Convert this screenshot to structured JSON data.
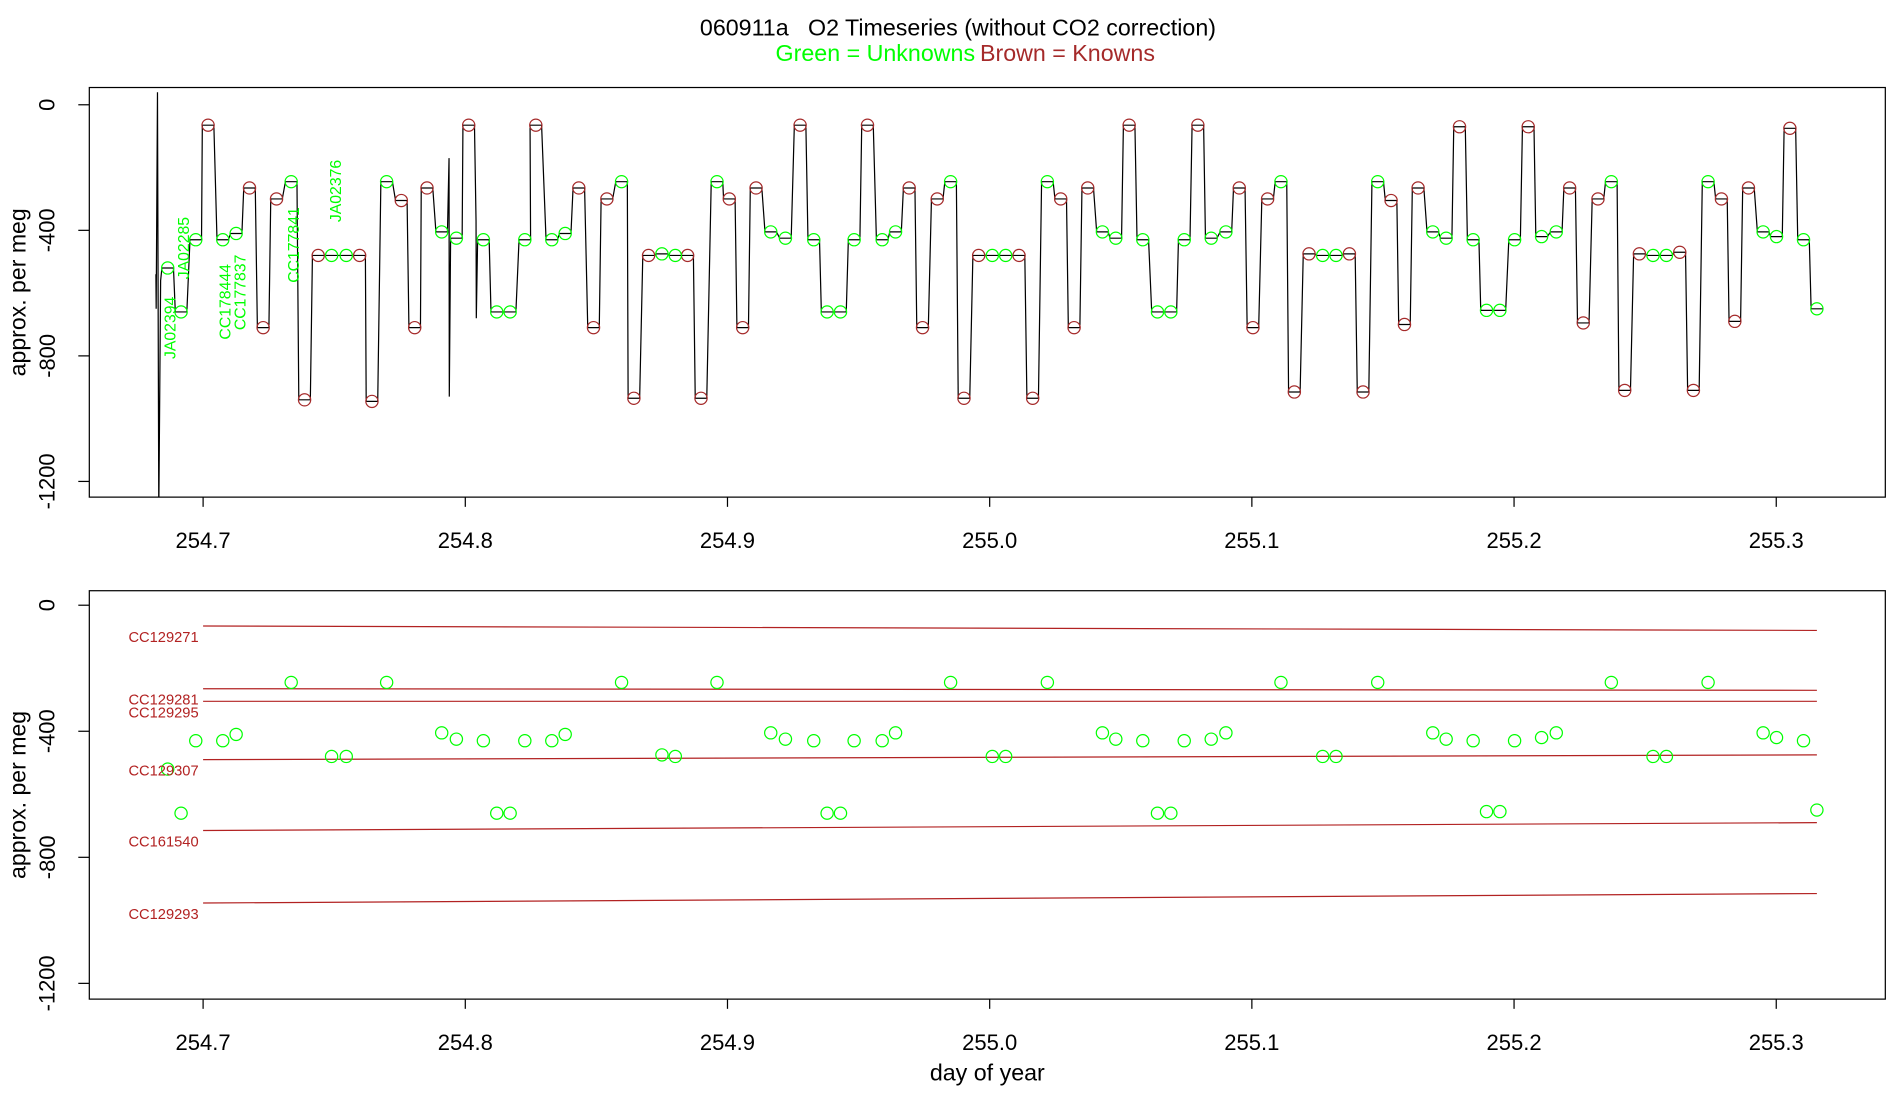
{
  "chart_data": [
    {
      "type": "line",
      "title": "060911a   O2 Timeseries (without CO2 correction)",
      "legend": [
        {
          "name": "Green = Unknowns",
          "color": "#00ff00"
        },
        {
          "name": "Brown = Knowns",
          "color": "#a52a2a"
        }
      ],
      "ylabel": "approx. per meg",
      "color": "#000000",
      "xlim": [
        254.6566,
        255.3416
      ],
      "ylim": [
        -1250,
        55
      ],
      "xticks": [
        254.7,
        254.8,
        254.9,
        {
          "value": 255,
          "label": "255.0"
        },
        255.1,
        255.2,
        255.3
      ],
      "yticks": [
        0,
        -400,
        -800,
        -1200
      ],
      "x": [
        254.682,
        254.6821,
        254.6826,
        254.6831,
        254.6838,
        254.6843,
        254.6887,
        254.6894,
        254.6938,
        254.695,
        254.6994,
        254.6997,
        254.7041,
        254.7053,
        254.7097,
        254.7104,
        254.7148,
        254.7155,
        254.7199,
        254.7207,
        254.7251,
        254.7258,
        254.7302,
        254.7314,
        254.7358,
        254.7365,
        254.7409,
        254.7417,
        254.7461,
        254.7468,
        254.7512,
        254.7524,
        254.7568,
        254.7575,
        254.7619,
        254.7622,
        254.7666,
        254.7678,
        254.7722,
        254.7734,
        254.7778,
        254.7785,
        254.7829,
        254.7832,
        254.7876,
        254.7888,
        254.7932,
        254.7938,
        254.7939,
        254.7944,
        254.7988,
        254.7991,
        254.8035,
        254.8041,
        254.8042,
        254.8047,
        254.8091,
        254.8098,
        254.8142,
        254.8149,
        254.8193,
        254.8205,
        254.8249,
        254.8247,
        254.8291,
        254.8308,
        254.8352,
        254.8359,
        254.8403,
        254.8411,
        254.8455,
        254.8467,
        254.8511,
        254.8518,
        254.8562,
        254.8574,
        254.8618,
        254.8621,
        254.8665,
        254.8677,
        254.8721,
        254.8728,
        254.8772,
        254.8779,
        254.8823,
        254.8826,
        254.887,
        254.8877,
        254.8921,
        254.8938,
        254.8982,
        254.8985,
        254.9029,
        254.9036,
        254.908,
        254.9087,
        254.9131,
        254.9143,
        254.9187,
        254.9199,
        254.9243,
        254.9255,
        254.9299,
        254.9307,
        254.9351,
        254.9358,
        254.9402,
        254.9409,
        254.9453,
        254.9461,
        254.9505,
        254.9512,
        254.9556,
        254.9568,
        254.9612,
        254.9619,
        254.9663,
        254.9671,
        254.9715,
        254.9722,
        254.9766,
        254.9778,
        254.9822,
        254.9829,
        254.9873,
        254.988,
        254.9924,
        254.9936,
        254.998,
        254.9988,
        255.0032,
        255.0039,
        255.0083,
        255.009,
        255.0134,
        255.0142,
        255.0186,
        255.0198,
        255.0242,
        255.0249,
        255.0293,
        255.03,
        255.0344,
        255.0352,
        255.0396,
        255.0408,
        255.0452,
        255.0459,
        255.0503,
        255.051,
        255.0554,
        255.0562,
        255.0606,
        255.0618,
        255.0662,
        255.0669,
        255.0713,
        255.072,
        255.0764,
        255.0772,
        255.0816,
        255.0823,
        255.0867,
        255.0879,
        255.0923,
        255.093,
        255.0974,
        255.0982,
        255.1026,
        255.1038,
        255.1082,
        255.1089,
        255.1133,
        255.114,
        255.1184,
        255.1196,
        255.124,
        255.1248,
        255.1292,
        255.1299,
        255.1343,
        255.135,
        255.1394,
        255.1402,
        255.1446,
        255.1458,
        255.1502,
        255.1509,
        255.1553,
        255.156,
        255.1604,
        255.1612,
        255.1656,
        255.1668,
        255.1712,
        255.1719,
        255.1763,
        255.177,
        255.1814,
        255.1822,
        255.1866,
        255.1873,
        255.1917,
        255.1924,
        255.1968,
        255.198,
        255.2024,
        255.2032,
        255.2076,
        255.2083,
        255.2127,
        255.2139,
        255.2183,
        255.219,
        255.2234,
        255.2242,
        255.2286,
        255.2298,
        255.2342,
        255.2349,
        255.2393,
        255.24,
        255.2444,
        255.2456,
        255.25,
        255.2508,
        255.2552,
        255.2559,
        255.2603,
        255.261,
        255.2654,
        255.2662,
        255.2706,
        255.2718,
        255.2762,
        255.2769,
        255.2813,
        255.282,
        255.2864,
        255.2872,
        255.2916,
        255.2928,
        255.2972,
        255.2979,
        255.3023,
        255.303,
        255.3074,
        255.3082,
        255.3126,
        255.3133,
        255.3177
      ],
      "values": [
        -540,
        -650,
        40,
        -1300,
        -560,
        -520,
        -520,
        -660,
        -660,
        -430,
        -430,
        -65,
        -65,
        -430,
        -430,
        -410,
        -410,
        -265,
        -265,
        -710,
        -710,
        -300,
        -300,
        -245,
        -245,
        -940,
        -940,
        -480,
        -480,
        -480,
        -480,
        -480,
        -480,
        -480,
        -480,
        -945,
        -945,
        -245,
        -245,
        -305,
        -305,
        -710,
        -710,
        -265,
        -265,
        -405,
        -405,
        -170,
        -930,
        -425,
        -425,
        -65,
        -65,
        -370,
        -680,
        -430,
        -430,
        -660,
        -660,
        -660,
        -660,
        -430,
        -430,
        -65,
        -65,
        -430,
        -430,
        -410,
        -410,
        -265,
        -265,
        -710,
        -710,
        -300,
        -300,
        -245,
        -245,
        -935,
        -935,
        -480,
        -480,
        -475,
        -475,
        -480,
        -480,
        -480,
        -480,
        -935,
        -935,
        -245,
        -245,
        -300,
        -300,
        -710,
        -710,
        -265,
        -265,
        -405,
        -405,
        -425,
        -425,
        -65,
        -65,
        -430,
        -430,
        -660,
        -660,
        -660,
        -660,
        -430,
        -430,
        -65,
        -65,
        -430,
        -430,
        -405,
        -405,
        -265,
        -265,
        -710,
        -710,
        -300,
        -300,
        -245,
        -245,
        -935,
        -935,
        -480,
        -480,
        -480,
        -480,
        -480,
        -480,
        -480,
        -480,
        -935,
        -935,
        -245,
        -245,
        -300,
        -300,
        -710,
        -710,
        -265,
        -265,
        -405,
        -405,
        -425,
        -425,
        -65,
        -65,
        -430,
        -430,
        -660,
        -660,
        -660,
        -660,
        -430,
        -430,
        -65,
        -65,
        -425,
        -425,
        -405,
        -405,
        -265,
        -265,
        -710,
        -710,
        -300,
        -300,
        -245,
        -245,
        -915,
        -915,
        -475,
        -475,
        -480,
        -480,
        -480,
        -480,
        -475,
        -475,
        -915,
        -915,
        -245,
        -245,
        -305,
        -305,
        -700,
        -700,
        -265,
        -265,
        -405,
        -405,
        -425,
        -425,
        -70,
        -70,
        -430,
        -430,
        -655,
        -655,
        -655,
        -655,
        -430,
        -430,
        -70,
        -70,
        -420,
        -420,
        -405,
        -405,
        -265,
        -265,
        -695,
        -695,
        -300,
        -300,
        -245,
        -245,
        -910,
        -910,
        -475,
        -475,
        -480,
        -480,
        -480,
        -480,
        -470,
        -470,
        -910,
        -910,
        -245,
        -245,
        -300,
        -300,
        -690,
        -690,
        -265,
        -265,
        -405,
        -405,
        -420,
        -420,
        -75,
        -75,
        -430,
        -430,
        -650,
        -650
      ],
      "markers": [
        {
          "color": "#a52a2a",
          "x": [
            254.7019,
            254.7177,
            254.7229,
            254.728,
            254.7387,
            254.7439,
            254.7597,
            254.7644,
            254.7756,
            254.7807,
            254.7854,
            254.8013,
            254.8269,
            254.8433,
            254.8489,
            254.854,
            254.8643,
            254.8699,
            254.8848,
            254.8899,
            254.9007,
            254.9058,
            254.9109,
            254.9277,
            254.9534,
            254.9693,
            254.9744,
            254.98,
            254.9902,
            254.9958,
            255.0112,
            255.0164,
            255.0271,
            255.0322,
            255.0374,
            255.0532,
            255.0794,
            255.0952,
            255.1004,
            255.106,
            255.1162,
            255.1218,
            255.1372,
            255.1424,
            255.1531,
            255.1582,
            255.1634,
            255.1792,
            255.2054,
            255.2212,
            255.2264,
            255.232,
            255.2422,
            255.2478,
            255.2632,
            255.2684,
            255.2791,
            255.2842,
            255.2894,
            255.3052
          ],
          "values": [
            -65,
            -265,
            -710,
            -300,
            -940,
            -480,
            -480,
            -945,
            -305,
            -710,
            -265,
            -65,
            -65,
            -265,
            -710,
            -300,
            -935,
            -480,
            -480,
            -935,
            -300,
            -710,
            -265,
            -65,
            -65,
            -265,
            -710,
            -300,
            -935,
            -480,
            -480,
            -935,
            -300,
            -710,
            -265,
            -65,
            -65,
            -265,
            -710,
            -300,
            -915,
            -475,
            -475,
            -915,
            -305,
            -700,
            -265,
            -70,
            -70,
            -265,
            -695,
            -300,
            -910,
            -475,
            -470,
            -910,
            -300,
            -690,
            -265,
            -75
          ]
        },
        {
          "color": "#00ff00",
          "x": [
            254.6865,
            254.6916,
            254.6972,
            254.7075,
            254.7126,
            254.7336,
            254.749,
            254.7546,
            254.77,
            254.791,
            254.7966,
            254.8069,
            254.812,
            254.8171,
            254.8227,
            254.833,
            254.8381,
            254.8596,
            254.875,
            254.8801,
            254.896,
            254.9165,
            254.9221,
            254.9329,
            254.938,
            254.9431,
            254.9483,
            254.959,
            254.9641,
            254.9851,
            255.001,
            255.0061,
            255.022,
            255.043,
            255.0481,
            255.0584,
            255.064,
            255.0691,
            255.0742,
            255.0845,
            255.0901,
            255.1111,
            255.127,
            255.1321,
            255.148,
            255.169,
            255.1741,
            255.1844,
            255.1895,
            255.1946,
            255.2002,
            255.2105,
            255.2161,
            255.2371,
            255.253,
            255.2581,
            255.274,
            255.295,
            255.3001,
            255.3104,
            255.3155
          ],
          "values": [
            -520,
            -660,
            -430,
            -430,
            -410,
            -245,
            -480,
            -480,
            -245,
            -405,
            -425,
            -430,
            -660,
            -660,
            -430,
            -430,
            -410,
            -245,
            -475,
            -480,
            -245,
            -405,
            -425,
            -430,
            -660,
            -660,
            -430,
            -430,
            -405,
            -245,
            -480,
            -480,
            -245,
            -405,
            -425,
            -430,
            -660,
            -660,
            -430,
            -425,
            -405,
            -245,
            -480,
            -480,
            -245,
            -405,
            -425,
            -430,
            -655,
            -655,
            -430,
            -420,
            -405,
            -245,
            -480,
            -480,
            -245,
            -405,
            -420,
            -430,
            -650
          ]
        }
      ],
      "annotations": [
        {
          "text": "JA02394",
          "x": 254.6879,
          "y": -810,
          "color": "#00ff00"
        },
        {
          "text": "JA02285",
          "x": 254.693,
          "y": -556,
          "color": "#00ff00"
        },
        {
          "text": "CC178444",
          "x": 254.7089,
          "y": -748,
          "color": "#00ff00"
        },
        {
          "text": "CC177837",
          "x": 254.7145,
          "y": -718,
          "color": "#00ff00"
        },
        {
          "text": "CC177841",
          "x": 254.735,
          "y": -567,
          "color": "#00ff00"
        },
        {
          "text": "JA02376",
          "x": 254.7509,
          "y": -374,
          "color": "#00ff00"
        }
      ]
    },
    {
      "type": "scatter",
      "ylabel": "approx. per meg",
      "xlabel": "day of year",
      "color": "#00ff00",
      "xlim": [
        254.6566,
        255.3416
      ],
      "ylim": [
        -1250,
        46
      ],
      "xticks": [
        254.7,
        254.8,
        254.9,
        {
          "value": 255,
          "label": "255.0"
        },
        255.1,
        255.2,
        255.3
      ],
      "yticks": [
        0,
        -400,
        -800,
        -1200
      ],
      "x": [
        254.6865,
        254.6916,
        254.6972,
        254.7075,
        254.7126,
        254.7336,
        254.749,
        254.7546,
        254.77,
        254.791,
        254.7966,
        254.8069,
        254.812,
        254.8171,
        254.8227,
        254.833,
        254.8381,
        254.8596,
        254.875,
        254.8801,
        254.896,
        254.9165,
        254.9221,
        254.9329,
        254.938,
        254.9431,
        254.9483,
        254.959,
        254.9641,
        254.9851,
        255.001,
        255.0061,
        255.022,
        255.043,
        255.0481,
        255.0584,
        255.064,
        255.0691,
        255.0742,
        255.0845,
        255.0901,
        255.1111,
        255.127,
        255.1321,
        255.148,
        255.169,
        255.1741,
        255.1844,
        255.1895,
        255.1946,
        255.2002,
        255.2105,
        255.2161,
        255.2371,
        255.253,
        255.2581,
        255.274,
        255.295,
        255.3001,
        255.3104,
        255.3155
      ],
      "values": [
        -520,
        -660,
        -430,
        -430,
        -410,
        -245,
        -480,
        -480,
        -245,
        -405,
        -425,
        -430,
        -660,
        -660,
        -430,
        -430,
        -410,
        -245,
        -475,
        -480,
        -245,
        -405,
        -425,
        -430,
        -660,
        -660,
        -430,
        -430,
        -405,
        -245,
        -480,
        -480,
        -245,
        -405,
        -425,
        -430,
        -660,
        -660,
        -430,
        -425,
        -405,
        -245,
        -480,
        -480,
        -245,
        -405,
        -425,
        -430,
        -655,
        -655,
        -430,
        -420,
        -405,
        -245,
        -480,
        -480,
        -245,
        -405,
        -420,
        -430,
        -650
      ],
      "series": [
        {
          "name": "CC129271",
          "color": "#b22222",
          "x": [
            254.7,
            255.3155
          ],
          "values": [
            -66,
            -80
          ]
        },
        {
          "name": "CC129281",
          "color": "#b22222",
          "x": [
            254.7,
            255.3155
          ],
          "values": [
            -265,
            -270
          ]
        },
        {
          "name": "CC129295",
          "color": "#b22222",
          "x": [
            254.7,
            255.3155
          ],
          "values": [
            -305,
            -305
          ]
        },
        {
          "name": "CC129307",
          "color": "#b22222",
          "x": [
            254.7,
            255.3155
          ],
          "values": [
            -490,
            -475
          ]
        },
        {
          "name": "CC161540",
          "color": "#b22222",
          "x": [
            254.7,
            255.3155
          ],
          "values": [
            -715,
            -690
          ]
        },
        {
          "name": "CC129293",
          "color": "#b22222",
          "x": [
            254.7,
            255.3155
          ],
          "values": [
            -945,
            -915
          ]
        }
      ]
    }
  ]
}
